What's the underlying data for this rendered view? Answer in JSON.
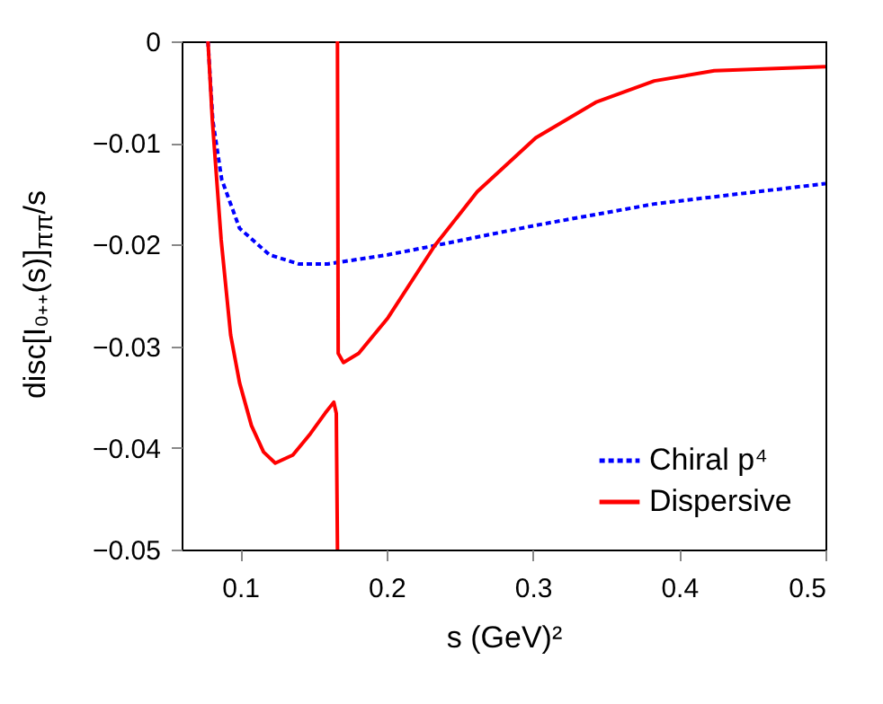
{
  "chart_data": {
    "type": "line",
    "xlabel": "s (GeV)²",
    "ylabel": "disc[I₀₊₊(s)]$_{ππ}$/s",
    "xlim": [
      0.06,
      0.5
    ],
    "xticks": [
      0.1,
      0.2,
      0.3,
      0.4,
      0.5
    ],
    "ylim": [
      -0.05,
      0
    ],
    "yticks": [
      -0.05,
      -0.04,
      -0.03,
      -0.02,
      -0.01,
      0
    ],
    "grid": false,
    "legend": "bottom right",
    "marker": "none",
    "series": [
      {
        "name": "Chiral p⁴",
        "color": "#0000ff",
        "line_style": "dotted",
        "x": [
          0.078,
          0.0813,
          0.0874,
          0.0996,
          0.12,
          0.14,
          0.16,
          0.201,
          0.233,
          0.302,
          0.383,
          0.5
        ],
        "values": [
          0,
          -0.0078,
          -0.0136,
          -0.0184,
          -0.021,
          -0.0219,
          -0.0219,
          -0.021,
          -0.0201,
          -0.0181,
          -0.016,
          -0.014
        ]
      },
      {
        "name": "Dispersive",
        "color": "#ff0000",
        "line_style": "solid",
        "x": [
          0.078,
          0.081,
          0.087,
          0.0935,
          0.0996,
          0.1077,
          0.116,
          0.124,
          0.136,
          0.148,
          0.158,
          0.164,
          0.1657,
          0.1665,
          null,
          0.1665,
          0.167,
          0.1706,
          0.181,
          0.201,
          0.233,
          0.262,
          0.302,
          0.343,
          0.383,
          0.424,
          0.5
        ],
        "values": [
          0,
          -0.0078,
          -0.0195,
          -0.0289,
          -0.0336,
          -0.0378,
          -0.0404,
          -0.0415,
          -0.0407,
          -0.0386,
          -0.0366,
          -0.0355,
          -0.0366,
          -0.05,
          null,
          0,
          -0.0307,
          -0.0316,
          -0.0307,
          -0.0272,
          -0.0201,
          -0.0148,
          -0.0095,
          -0.006,
          -0.0039,
          -0.0029,
          -0.0025
        ]
      }
    ]
  }
}
